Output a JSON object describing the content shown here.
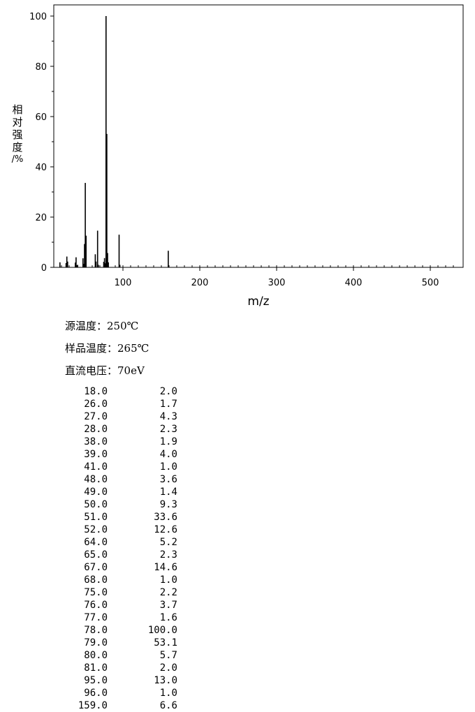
{
  "chart_data": {
    "type": "bar",
    "xlabel": "m/z",
    "ylabel_chars": [
      "相",
      "对",
      "强",
      "度",
      "/%"
    ],
    "xlim": [
      10,
      535
    ],
    "ylim": [
      0,
      100
    ],
    "x_ticks": [
      100,
      200,
      300,
      400,
      500
    ],
    "y_ticks": [
      0,
      20,
      40,
      60,
      80,
      100
    ],
    "peaks": [
      {
        "mz": "18.0",
        "abundance": "2.0"
      },
      {
        "mz": "26.0",
        "abundance": "1.7"
      },
      {
        "mz": "27.0",
        "abundance": "4.3"
      },
      {
        "mz": "28.0",
        "abundance": "2.3"
      },
      {
        "mz": "38.0",
        "abundance": "1.9"
      },
      {
        "mz": "39.0",
        "abundance": "4.0"
      },
      {
        "mz": "41.0",
        "abundance": "1.0"
      },
      {
        "mz": "48.0",
        "abundance": "3.6"
      },
      {
        "mz": "49.0",
        "abundance": "1.4"
      },
      {
        "mz": "50.0",
        "abundance": "9.3"
      },
      {
        "mz": "51.0",
        "abundance": "33.6"
      },
      {
        "mz": "52.0",
        "abundance": "12.6"
      },
      {
        "mz": "64.0",
        "abundance": "5.2"
      },
      {
        "mz": "65.0",
        "abundance": "2.3"
      },
      {
        "mz": "67.0",
        "abundance": "14.6"
      },
      {
        "mz": "68.0",
        "abundance": "1.0"
      },
      {
        "mz": "75.0",
        "abundance": "2.2"
      },
      {
        "mz": "76.0",
        "abundance": "3.7"
      },
      {
        "mz": "77.0",
        "abundance": "1.6"
      },
      {
        "mz": "78.0",
        "abundance": "100.0"
      },
      {
        "mz": "79.0",
        "abundance": "53.1"
      },
      {
        "mz": "80.0",
        "abundance": "5.7"
      },
      {
        "mz": "81.0",
        "abundance": "2.0"
      },
      {
        "mz": "95.0",
        "abundance": "13.0"
      },
      {
        "mz": "96.0",
        "abundance": "1.0"
      },
      {
        "mz": "159.0",
        "abundance": "6.6"
      }
    ]
  },
  "conditions": {
    "source_temp": "源温度：250℃",
    "sample_temp": "样品温度：265℃",
    "voltage": "直流电压：70eV"
  }
}
